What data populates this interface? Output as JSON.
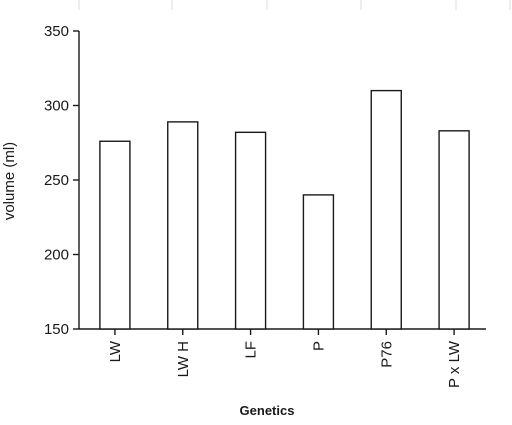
{
  "chart_data": {
    "type": "bar",
    "title": "",
    "xlabel": "Genetics",
    "ylabel": "volume (ml)",
    "categories": [
      "LW",
      "LW H",
      "LF",
      "P",
      "P76",
      "P x LW"
    ],
    "values": [
      276,
      289,
      282,
      240,
      310,
      283
    ],
    "ylim": [
      150,
      350
    ],
    "yticks": [
      150,
      200,
      250,
      300,
      350
    ],
    "grid": false,
    "legend": "none"
  }
}
